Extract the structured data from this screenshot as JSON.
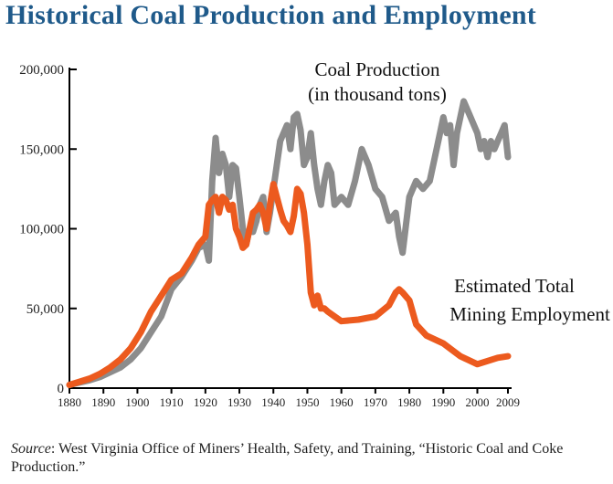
{
  "title": "Historical Coal Production and Employment",
  "source": {
    "label": "Source",
    "text": ": West Virginia Office of Miners’ Health, Safety, and Training, “Historic Coal and Coke Production.”"
  },
  "chart_data": {
    "type": "line",
    "title": "Historical Coal Production and Employment",
    "xlabel": "",
    "ylabel": "",
    "xlim": [
      1880,
      2009
    ],
    "ylim": [
      0,
      200000
    ],
    "x_ticks": [
      "1880",
      "1890",
      "1900",
      "1910",
      "1920",
      "1930",
      "1940",
      "1950",
      "1960",
      "1970",
      "1980",
      "1990",
      "2000",
      "2009"
    ],
    "y_ticks": [
      "0",
      "50,000",
      "100,000",
      "150,000",
      "200,000"
    ],
    "grid": false,
    "legend": "direct labels",
    "series": [
      {
        "name": "Coal Production (in thousand tons)",
        "label_lines": [
          "Coal Production",
          "(in thousand tons)"
        ],
        "color": "#8c8c8c",
        "x": [
          1880,
          1883,
          1886,
          1889,
          1892,
          1895,
          1898,
          1901,
          1904,
          1907,
          1910,
          1913,
          1916,
          1918,
          1920,
          1921,
          1922,
          1923,
          1924,
          1925,
          1926,
          1927,
          1928,
          1929,
          1930,
          1931,
          1932,
          1933,
          1934,
          1935,
          1936,
          1937,
          1938,
          1939,
          1940,
          1941,
          1942,
          1943,
          1944,
          1945,
          1946,
          1947,
          1948,
          1949,
          1950,
          1951,
          1952,
          1953,
          1954,
          1955,
          1956,
          1957,
          1958,
          1960,
          1962,
          1964,
          1966,
          1968,
          1970,
          1972,
          1974,
          1976,
          1977,
          1978,
          1980,
          1982,
          1984,
          1986,
          1988,
          1990,
          1991,
          1992,
          1993,
          1994,
          1996,
          1998,
          1999,
          2000,
          2001,
          2002,
          2003,
          2004,
          2005,
          2006,
          2007,
          2008,
          2009
        ],
        "values": [
          2000,
          3500,
          5000,
          7000,
          10000,
          13000,
          18000,
          25000,
          35000,
          45000,
          62000,
          70000,
          80000,
          88000,
          90000,
          80000,
          130000,
          157000,
          135000,
          147000,
          140000,
          120000,
          140000,
          138000,
          120000,
          100000,
          90000,
          100000,
          98000,
          105000,
          115000,
          120000,
          98000,
          110000,
          125000,
          140000,
          155000,
          160000,
          165000,
          150000,
          170000,
          172000,
          162000,
          140000,
          145000,
          160000,
          140000,
          125000,
          115000,
          130000,
          140000,
          135000,
          115000,
          120000,
          115000,
          130000,
          150000,
          140000,
          125000,
          120000,
          105000,
          110000,
          95000,
          85000,
          120000,
          130000,
          125000,
          130000,
          150000,
          170000,
          160000,
          165000,
          140000,
          160000,
          180000,
          170000,
          165000,
          160000,
          150000,
          155000,
          145000,
          155000,
          150000,
          155000,
          160000,
          165000,
          145000
        ]
      },
      {
        "name": "Estimated Total Mining Employment",
        "label_lines": [
          "Estimated Total",
          "Mining Employment"
        ],
        "color": "#ec5a1e",
        "x": [
          1880,
          1883,
          1886,
          1889,
          1892,
          1895,
          1898,
          1901,
          1904,
          1907,
          1910,
          1913,
          1916,
          1918,
          1920,
          1921,
          1922,
          1923,
          1924,
          1925,
          1926,
          1927,
          1928,
          1929,
          1930,
          1931,
          1932,
          1933,
          1934,
          1935,
          1936,
          1937,
          1938,
          1939,
          1940,
          1941,
          1942,
          1943,
          1944,
          1945,
          1946,
          1947,
          1948,
          1949,
          1950,
          1951,
          1952,
          1953,
          1954,
          1955,
          1956,
          1958,
          1960,
          1965,
          1970,
          1974,
          1976,
          1977,
          1978,
          1980,
          1982,
          1985,
          1990,
          1995,
          2000,
          2003,
          2006,
          2009
        ],
        "values": [
          2000,
          4000,
          6000,
          9000,
          13000,
          18000,
          25000,
          35000,
          48000,
          58000,
          68000,
          72000,
          82000,
          90000,
          95000,
          115000,
          118000,
          120000,
          110000,
          120000,
          118000,
          112000,
          115000,
          100000,
          95000,
          88000,
          90000,
          100000,
          110000,
          112000,
          115000,
          110000,
          100000,
          115000,
          128000,
          120000,
          112000,
          105000,
          102000,
          98000,
          108000,
          125000,
          122000,
          110000,
          90000,
          60000,
          52000,
          58000,
          50000,
          50000,
          48000,
          45000,
          42000,
          43000,
          45000,
          52000,
          60000,
          62000,
          60000,
          55000,
          40000,
          33000,
          28000,
          20000,
          15000,
          17000,
          19000,
          20000
        ]
      }
    ]
  }
}
